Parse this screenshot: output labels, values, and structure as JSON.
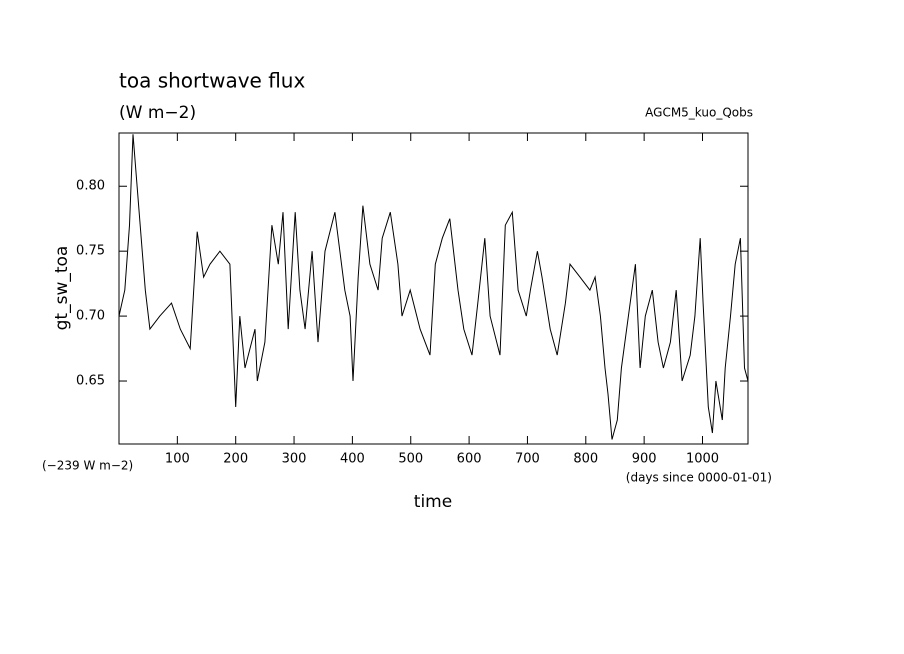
{
  "chart_data": {
    "type": "line",
    "title": "toa shortwave flux",
    "subtitle": "(W m−2)",
    "annotation": "AGCM5_kuo_Qobs",
    "ylabel": "gt_sw_toa",
    "xlabel": "time",
    "offset_label": "(−239 W m−2)",
    "xunit_label": "(days since 0000-01-01)",
    "x": [
      0,
      10,
      18,
      24,
      31,
      45,
      53,
      70,
      90,
      105,
      122,
      134,
      145,
      156,
      173,
      190,
      200,
      207,
      216,
      233,
      237,
      250,
      262,
      273,
      281,
      290,
      302,
      310,
      319,
      331,
      341,
      353,
      370,
      387,
      396,
      401,
      410,
      418,
      430,
      444,
      451,
      465,
      478,
      485,
      499,
      516,
      533,
      542,
      554,
      567,
      581,
      591,
      605,
      615,
      627,
      636,
      653,
      662,
      674,
      684,
      698,
      705,
      717,
      725,
      739,
      751,
      765,
      773,
      790,
      807,
      816,
      825,
      833,
      838,
      845,
      854,
      861,
      873,
      885,
      893,
      902,
      914,
      924,
      933,
      945,
      955,
      965,
      979,
      987,
      996,
      1001,
      1010,
      1017,
      1023,
      1034,
      1039,
      1048,
      1056,
      1065,
      1072,
      1078
    ],
    "series": [
      {
        "name": "gt_sw_toa",
        "color": "#000000",
        "values": [
          0.7,
          0.72,
          0.77,
          0.84,
          0.8,
          0.72,
          0.69,
          0.7,
          0.71,
          0.69,
          0.675,
          0.765,
          0.73,
          0.74,
          0.75,
          0.74,
          0.63,
          0.7,
          0.66,
          0.69,
          0.65,
          0.68,
          0.77,
          0.74,
          0.78,
          0.69,
          0.78,
          0.72,
          0.69,
          0.75,
          0.68,
          0.75,
          0.78,
          0.72,
          0.7,
          0.65,
          0.73,
          0.785,
          0.74,
          0.72,
          0.76,
          0.78,
          0.74,
          0.7,
          0.72,
          0.69,
          0.67,
          0.74,
          0.76,
          0.775,
          0.72,
          0.69,
          0.67,
          0.71,
          0.76,
          0.7,
          0.67,
          0.77,
          0.78,
          0.72,
          0.7,
          0.72,
          0.75,
          0.73,
          0.69,
          0.67,
          0.71,
          0.74,
          0.73,
          0.72,
          0.73,
          0.7,
          0.66,
          0.64,
          0.605,
          0.62,
          0.66,
          0.7,
          0.74,
          0.66,
          0.7,
          0.72,
          0.68,
          0.66,
          0.68,
          0.72,
          0.65,
          0.67,
          0.7,
          0.76,
          0.71,
          0.63,
          0.61,
          0.65,
          0.62,
          0.66,
          0.7,
          0.74,
          0.76,
          0.66,
          0.65
        ]
      }
    ],
    "xlim": [
      0,
      1078
    ],
    "ylim": [
      0.6015,
      0.841
    ],
    "xticks": [
      100,
      200,
      300,
      400,
      500,
      600,
      700,
      800,
      900,
      1000
    ],
    "yticks": [
      0.65,
      {
        "value": 0.7,
        "label": "0.70"
      },
      0.75,
      {
        "value": 0.8,
        "label": "0.80"
      }
    ]
  }
}
